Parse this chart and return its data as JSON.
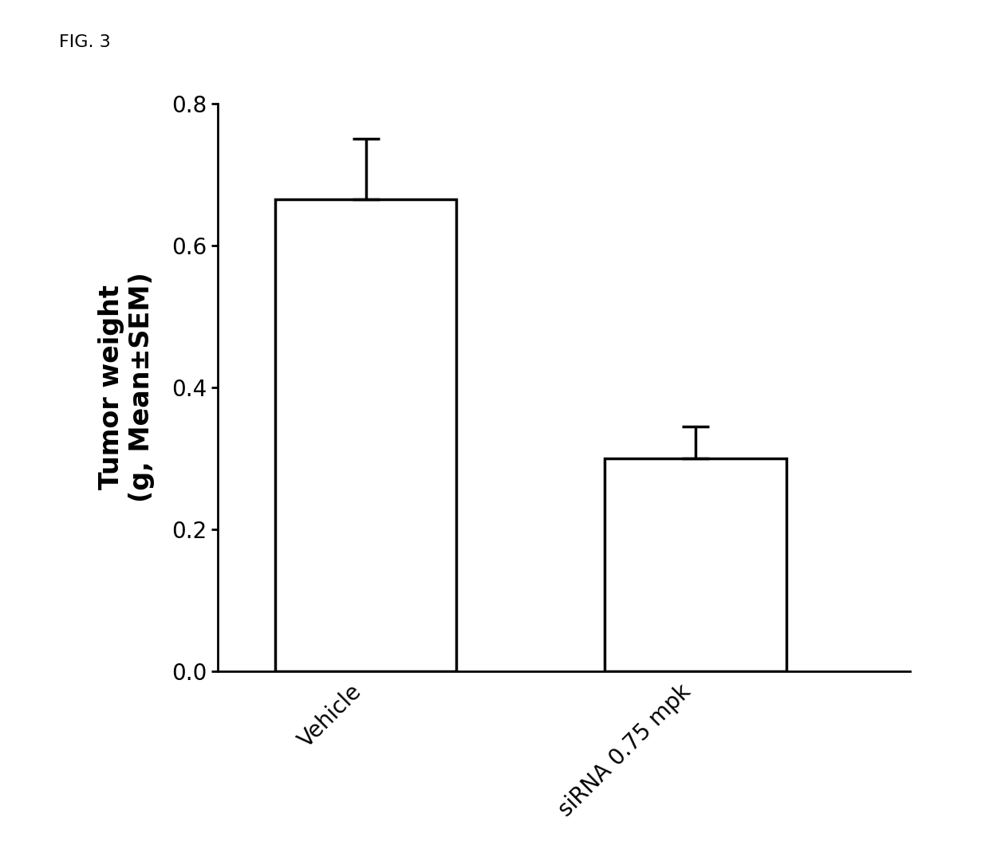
{
  "categories": [
    "Vehicle",
    "siRNA 0.75 mpk"
  ],
  "values": [
    0.665,
    0.3
  ],
  "errors_up": [
    0.085,
    0.045
  ],
  "bar_colors": [
    "#ffffff",
    "#ffffff"
  ],
  "bar_edgecolors": [
    "#000000",
    "#000000"
  ],
  "bar_linewidth": 2.5,
  "bar_width": 0.55,
  "error_color": "#000000",
  "error_linewidth": 2.5,
  "error_capsize": 12,
  "error_capthick": 2.5,
  "ylabel": "Tumor weight\n(g, Mean±SEM)",
  "ylabel_fontsize": 24,
  "ylabel_fontweight": "bold",
  "tick_fontsize": 20,
  "xtick_fontsize": 20,
  "ylim": [
    0.0,
    0.8
  ],
  "yticks": [
    0.0,
    0.2,
    0.4,
    0.6,
    0.8
  ],
  "fig_label": "FIG. 3",
  "fig_label_fontsize": 16,
  "background_color": "#ffffff",
  "spine_linewidth": 2.0,
  "bar_positions": [
    1,
    2
  ],
  "xlim": [
    0.55,
    2.65
  ]
}
